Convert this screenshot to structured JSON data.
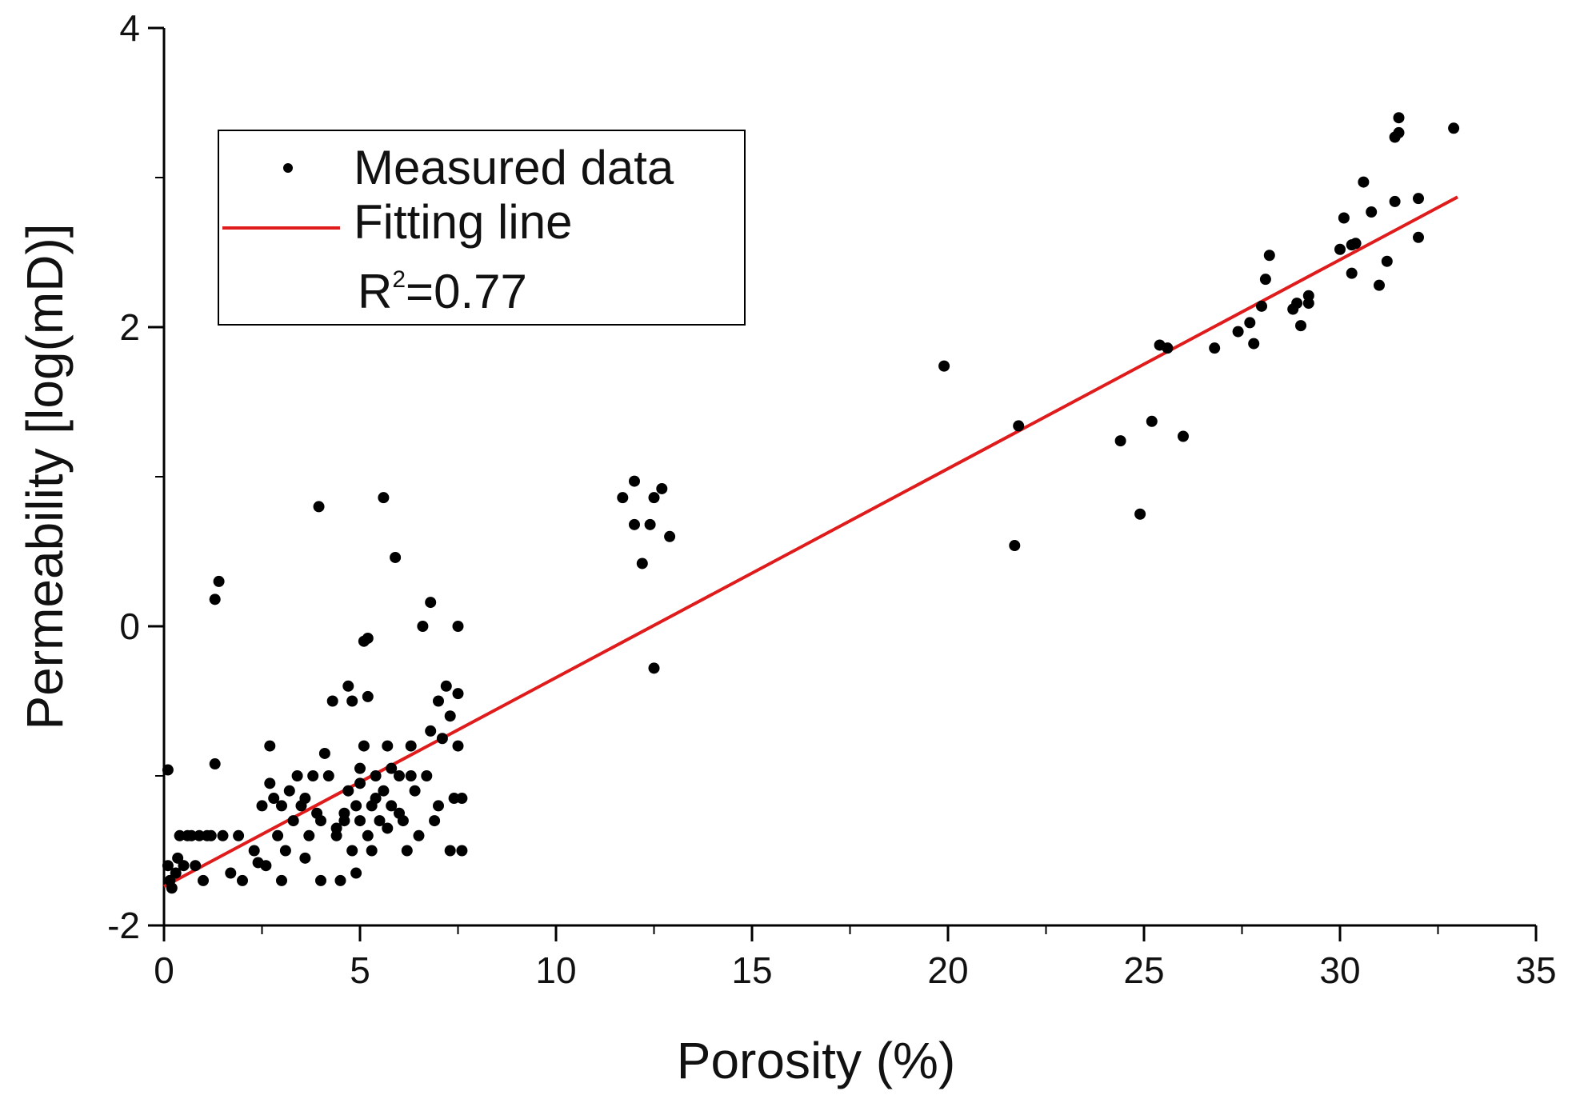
{
  "chart_data": {
    "type": "scatter",
    "title": "",
    "xlabel": "Porosity (%)",
    "ylabel": "Permeability [log(mD)]",
    "xlim": [
      0,
      35
    ],
    "ylim": [
      -2,
      4
    ],
    "x_ticks": [
      0,
      5,
      10,
      15,
      20,
      25,
      30,
      35
    ],
    "y_ticks": [
      -2,
      0,
      2,
      4
    ],
    "x_tick_labels": [
      "0",
      "5",
      "10",
      "15",
      "20",
      "25",
      "30",
      "35"
    ],
    "y_tick_labels": [
      "-2",
      "0",
      "2",
      "4"
    ],
    "grid": false,
    "legend": {
      "position": "top-left",
      "measured_label": "Measured data",
      "fitting_label": "Fitting line",
      "r2_prefix": "R",
      "r2_sup": "2",
      "r2_value": "=0.77"
    },
    "colors": {
      "points": "#000000",
      "fit_line": "#e01b1b",
      "axes": "#000000"
    },
    "fit_line": {
      "x": [
        0,
        33
      ],
      "y": [
        -1.74,
        2.87
      ]
    },
    "series": [
      {
        "name": "Measured data",
        "points": [
          [
            0.1,
            -0.96
          ],
          [
            0.1,
            -1.6
          ],
          [
            0.15,
            -1.7
          ],
          [
            0.2,
            -1.75
          ],
          [
            0.3,
            -1.65
          ],
          [
            0.35,
            -1.55
          ],
          [
            0.4,
            -1.4
          ],
          [
            0.5,
            -1.6
          ],
          [
            0.6,
            -1.4
          ],
          [
            0.7,
            -1.4
          ],
          [
            0.8,
            -1.6
          ],
          [
            0.9,
            -1.4
          ],
          [
            1.0,
            -1.7
          ],
          [
            1.1,
            -1.4
          ],
          [
            1.2,
            -1.4
          ],
          [
            1.3,
            0.18
          ],
          [
            1.4,
            0.3
          ],
          [
            1.3,
            -0.92
          ],
          [
            1.5,
            -1.4
          ],
          [
            1.7,
            -1.65
          ],
          [
            1.9,
            -1.4
          ],
          [
            2.0,
            -1.7
          ],
          [
            2.3,
            -1.5
          ],
          [
            2.4,
            -1.58
          ],
          [
            2.5,
            -1.2
          ],
          [
            2.6,
            -1.6
          ],
          [
            2.7,
            -0.8
          ],
          [
            2.7,
            -1.05
          ],
          [
            2.8,
            -1.15
          ],
          [
            2.9,
            -1.4
          ],
          [
            3.0,
            -1.2
          ],
          [
            3.0,
            -1.7
          ],
          [
            3.1,
            -1.5
          ],
          [
            3.2,
            -1.1
          ],
          [
            3.3,
            -1.3
          ],
          [
            3.4,
            -1.0
          ],
          [
            3.5,
            -1.2
          ],
          [
            3.6,
            -1.55
          ],
          [
            3.7,
            -1.4
          ],
          [
            3.8,
            -1.0
          ],
          [
            3.9,
            -1.25
          ],
          [
            4.0,
            -1.3
          ],
          [
            4.0,
            -1.7
          ],
          [
            3.95,
            0.8
          ],
          [
            4.1,
            -0.85
          ],
          [
            4.2,
            -1.0
          ],
          [
            4.3,
            -0.5
          ],
          [
            4.4,
            -1.4
          ],
          [
            4.5,
            -1.7
          ],
          [
            4.6,
            -1.3
          ],
          [
            4.7,
            -0.4
          ],
          [
            4.7,
            -1.1
          ],
          [
            4.8,
            -0.5
          ],
          [
            4.8,
            -1.5
          ],
          [
            4.9,
            -1.2
          ],
          [
            4.9,
            -1.65
          ],
          [
            5.0,
            -1.3
          ],
          [
            5.0,
            -0.95
          ],
          [
            5.1,
            -0.8
          ],
          [
            5.2,
            -1.4
          ],
          [
            5.3,
            -1.2
          ],
          [
            5.1,
            -0.1
          ],
          [
            5.2,
            -0.08
          ],
          [
            5.2,
            -0.47
          ],
          [
            5.3,
            -1.5
          ],
          [
            5.4,
            -1.0
          ],
          [
            5.5,
            -1.3
          ],
          [
            5.6,
            0.86
          ],
          [
            5.6,
            -1.1
          ],
          [
            5.7,
            -0.8
          ],
          [
            5.8,
            -1.2
          ],
          [
            5.9,
            0.46
          ],
          [
            6.0,
            -1.0
          ],
          [
            6.1,
            -1.3
          ],
          [
            6.2,
            -1.5
          ],
          [
            6.3,
            -0.8
          ],
          [
            6.4,
            -1.1
          ],
          [
            6.5,
            -1.4
          ],
          [
            6.6,
            0.0
          ],
          [
            6.7,
            -1.0
          ],
          [
            6.8,
            0.16
          ],
          [
            6.8,
            -0.7
          ],
          [
            6.9,
            -1.3
          ],
          [
            7.0,
            -0.5
          ],
          [
            7.0,
            -1.2
          ],
          [
            7.1,
            -0.75
          ],
          [
            7.2,
            -0.4
          ],
          [
            7.3,
            -0.6
          ],
          [
            7.3,
            -1.5
          ],
          [
            7.4,
            -1.15
          ],
          [
            7.5,
            0.0
          ],
          [
            7.5,
            -0.45
          ],
          [
            7.5,
            -0.8
          ],
          [
            7.6,
            -1.15
          ],
          [
            7.6,
            -1.5
          ],
          [
            5.0,
            -1.05
          ],
          [
            5.4,
            -1.15
          ],
          [
            5.7,
            -1.35
          ],
          [
            4.6,
            -1.25
          ],
          [
            4.4,
            -1.35
          ],
          [
            5.8,
            -0.95
          ],
          [
            6.0,
            -1.25
          ],
          [
            3.6,
            -1.15
          ],
          [
            6.3,
            -1.0
          ],
          [
            11.7,
            0.86
          ],
          [
            12.0,
            0.97
          ],
          [
            12.0,
            0.68
          ],
          [
            12.4,
            0.68
          ],
          [
            12.2,
            0.42
          ],
          [
            12.5,
            0.86
          ],
          [
            12.7,
            0.92
          ],
          [
            12.9,
            0.6
          ],
          [
            12.5,
            -0.28
          ],
          [
            19.9,
            1.74
          ],
          [
            21.7,
            0.54
          ],
          [
            21.8,
            1.34
          ],
          [
            24.4,
            1.24
          ],
          [
            24.9,
            0.75
          ],
          [
            25.2,
            1.37
          ],
          [
            25.4,
            1.88
          ],
          [
            25.6,
            1.86
          ],
          [
            26.0,
            1.27
          ],
          [
            26.8,
            1.86
          ],
          [
            27.4,
            1.97
          ],
          [
            27.7,
            2.03
          ],
          [
            27.8,
            1.89
          ],
          [
            28.0,
            2.14
          ],
          [
            28.1,
            2.32
          ],
          [
            28.2,
            2.48
          ],
          [
            28.8,
            2.12
          ],
          [
            28.9,
            2.16
          ],
          [
            29.0,
            2.01
          ],
          [
            29.2,
            2.16
          ],
          [
            29.2,
            2.21
          ],
          [
            30.0,
            2.52
          ],
          [
            30.1,
            2.73
          ],
          [
            30.3,
            2.36
          ],
          [
            30.3,
            2.55
          ],
          [
            30.4,
            2.56
          ],
          [
            30.6,
            2.97
          ],
          [
            30.8,
            2.77
          ],
          [
            31.0,
            2.28
          ],
          [
            31.2,
            2.44
          ],
          [
            31.4,
            2.84
          ],
          [
            31.4,
            3.27
          ],
          [
            31.5,
            3.3
          ],
          [
            31.5,
            3.4
          ],
          [
            32.0,
            2.86
          ],
          [
            32.0,
            2.6
          ],
          [
            32.9,
            3.33
          ]
        ]
      }
    ]
  }
}
